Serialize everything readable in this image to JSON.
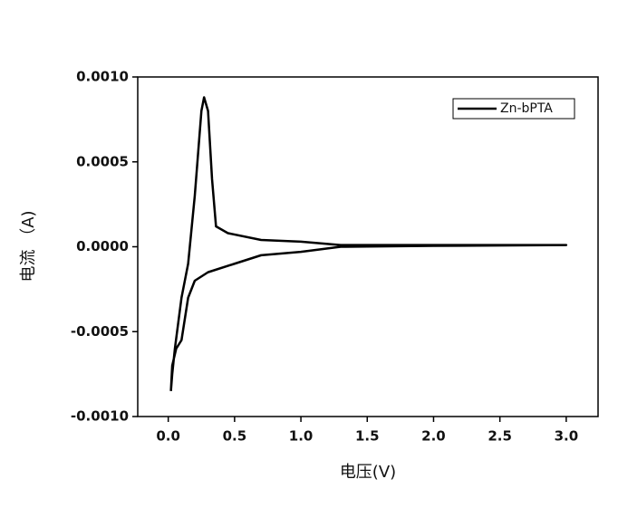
{
  "chart_data": {
    "type": "line",
    "x_label": "电压(V)",
    "y_label": "电流 （A)",
    "x": [
      0.02,
      0.03,
      0.05,
      0.1,
      0.15,
      0.2,
      0.25,
      0.27,
      0.3,
      0.33,
      0.36,
      0.45,
      0.7,
      1.0,
      1.3,
      2.0,
      3.0,
      2.0,
      1.3,
      1.0,
      0.7,
      0.5,
      0.3,
      0.2,
      0.15,
      0.1,
      0.06,
      0.03,
      0.02
    ],
    "series": [
      {
        "name": "Zn-bPTA",
        "color": "#000000",
        "values": [
          -0.00085,
          -0.00075,
          -0.0006,
          -0.0003,
          -0.0001,
          0.0003,
          0.0008,
          0.00088,
          0.0008,
          0.0004,
          0.00012,
          8e-05,
          4e-05,
          3e-05,
          1e-05,
          1e-05,
          1e-05,
          5e-06,
          0.0,
          -3e-05,
          -5e-05,
          -0.0001,
          -0.00015,
          -0.0002,
          -0.0003,
          -0.00055,
          -0.0006,
          -0.0007,
          -0.00085
        ]
      }
    ],
    "xlim": [
      -0.23,
      3.24
    ],
    "ylim": [
      -0.001,
      0.001
    ],
    "xticks": [
      {
        "value": 0,
        "label": "0.0"
      },
      0.5,
      {
        "value": 1,
        "label": "1.0"
      },
      1.5,
      {
        "value": 2,
        "label": "2.0"
      },
      2.5,
      {
        "value": 3,
        "label": "3.0"
      }
    ],
    "yticks": [
      {
        "value": -0.001,
        "label": "-0.0010"
      },
      {
        "value": -0.0005,
        "label": "-0.0005"
      },
      {
        "value": 0,
        "label": "0.0000"
      },
      {
        "value": 0.0005,
        "label": "0.0005"
      },
      {
        "value": 0.001,
        "label": "0.0010"
      }
    ],
    "legend": "upper right"
  }
}
